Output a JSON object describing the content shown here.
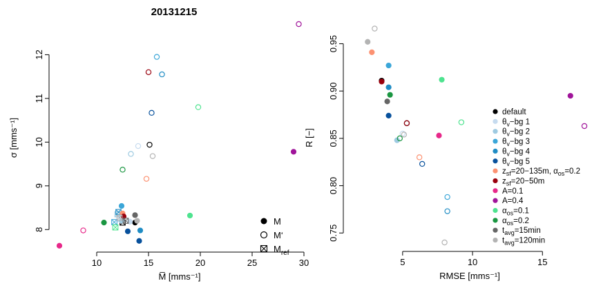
{
  "figure_title": "20131215",
  "chart_data": [
    {
      "type": "scatter",
      "title": "20131215",
      "xlabel": "M̅ [mms⁻¹]",
      "ylabel": "σ [mms⁻¹]",
      "xlim": [
        6,
        30
      ],
      "ylim": [
        7.5,
        12.7
      ],
      "x_ticks": [
        10,
        15,
        20,
        25,
        30
      ],
      "y_ticks": [
        8,
        9,
        10,
        11,
        12
      ],
      "grid": false,
      "legend_position": "bottom-right",
      "legend": [
        {
          "label": "M",
          "marker": "filled"
        },
        {
          "label": "M‘",
          "marker": "open"
        },
        {
          "label": "M",
          "sub": "ref",
          "marker": "crossed-square"
        }
      ],
      "points": [
        {
          "series": "default",
          "x": 13.7,
          "y": 8.16,
          "marker": "filled",
          "color": "#000000"
        },
        {
          "series": "default",
          "x": 15.1,
          "y": 9.94,
          "marker": "open",
          "color": "#000000"
        },
        {
          "series": "default",
          "x": 12.5,
          "y": 8.16,
          "marker": "ref",
          "color": "#000000"
        },
        {
          "series": "θv-bg 1",
          "x": 13.2,
          "y": 8.18,
          "marker": "filled",
          "color": "#c6dbef"
        },
        {
          "series": "θv-bg 1",
          "x": 14.0,
          "y": 9.91,
          "marker": "open",
          "color": "#c6dbef"
        },
        {
          "series": "θv-bg 1",
          "x": 12.3,
          "y": 8.24,
          "marker": "ref",
          "color": "#c6dbef"
        },
        {
          "series": "θv-bg 2",
          "x": 12.4,
          "y": 8.2,
          "marker": "filled",
          "color": "#9ecae1"
        },
        {
          "series": "θv-bg 2",
          "x": 13.3,
          "y": 9.73,
          "marker": "open",
          "color": "#9ecae1"
        },
        {
          "series": "θv-bg 2",
          "x": 12.0,
          "y": 8.35,
          "marker": "ref",
          "color": "#9ecae1"
        },
        {
          "series": "θv-bg 3",
          "x": 12.4,
          "y": 8.54,
          "marker": "filled",
          "color": "#3ba6d8"
        },
        {
          "series": "θv-bg 3",
          "x": 15.8,
          "y": 11.95,
          "marker": "open",
          "color": "#3ba6d8"
        },
        {
          "series": "θv-bg 3",
          "x": 11.7,
          "y": 8.17,
          "marker": "ref",
          "color": "#3ba6d8"
        },
        {
          "series": "θv-bg 4",
          "x": 14.2,
          "y": 7.98,
          "marker": "filled",
          "color": "#1f8cc4"
        },
        {
          "series": "θv-bg 4",
          "x": 16.3,
          "y": 11.55,
          "marker": "open",
          "color": "#1f8cc4"
        },
        {
          "series": "θv-bg 4",
          "x": 12.1,
          "y": 8.4,
          "marker": "ref",
          "color": "#1f8cc4"
        },
        {
          "series": "θv-bg 5",
          "x": 14.1,
          "y": 7.74,
          "marker": "filled",
          "color": "#08519c"
        },
        {
          "series": "θv-bg 5",
          "x": 15.3,
          "y": 10.67,
          "marker": "open",
          "color": "#08519c"
        },
        {
          "series": "θv-bg 5",
          "x": 13.0,
          "y": 7.96,
          "marker": "filled",
          "color": "#08519c"
        },
        {
          "series": "zsf=20–135m, αos=0.2",
          "x": 12.5,
          "y": 8.37,
          "marker": "filled",
          "color": "#fc9272"
        },
        {
          "series": "zsf=20–135m, αos=0.2",
          "x": 14.8,
          "y": 9.16,
          "marker": "open",
          "color": "#fc9272"
        },
        {
          "series": "zsf=20–50m",
          "x": 12.6,
          "y": 8.3,
          "marker": "filled",
          "color": "#99000d"
        },
        {
          "series": "zsf=20–50m",
          "x": 15.0,
          "y": 11.6,
          "marker": "open",
          "color": "#99000d"
        },
        {
          "series": "A=0.1",
          "x": 6.4,
          "y": 7.63,
          "marker": "filled",
          "color": "#e7298a"
        },
        {
          "series": "A=0.1",
          "x": 8.7,
          "y": 7.98,
          "marker": "open",
          "color": "#e7298a"
        },
        {
          "series": "A=0.4",
          "x": 29.0,
          "y": 9.78,
          "marker": "filled",
          "color": "#a0149a"
        },
        {
          "series": "A=0.4",
          "x": 29.5,
          "y": 12.7,
          "marker": "open",
          "color": "#a0149a"
        },
        {
          "series": "αos=0.1",
          "x": 19.0,
          "y": 8.32,
          "marker": "filled",
          "color": "#4ee38f"
        },
        {
          "series": "αos=0.1",
          "x": 19.8,
          "y": 10.8,
          "marker": "open",
          "color": "#4ee38f"
        },
        {
          "series": "αos=0.1",
          "x": 11.8,
          "y": 8.05,
          "marker": "ref",
          "color": "#4ee38f"
        },
        {
          "series": "αos=0.2",
          "x": 10.7,
          "y": 8.16,
          "marker": "filled",
          "color": "#1a9641"
        },
        {
          "series": "αos=0.2",
          "x": 12.5,
          "y": 9.37,
          "marker": "open",
          "color": "#1a9641"
        },
        {
          "series": "tavg=15min",
          "x": 13.7,
          "y": 8.33,
          "marker": "filled",
          "color": "#666666"
        },
        {
          "series": "tavg=15min",
          "x": 12.8,
          "y": 8.2,
          "marker": "ref",
          "color": "#666666"
        },
        {
          "series": "tavg=120min",
          "x": 13.9,
          "y": 8.2,
          "marker": "filled",
          "color": "#b3b3b3"
        },
        {
          "series": "tavg=120min",
          "x": 15.4,
          "y": 9.68,
          "marker": "open",
          "color": "#b3b3b3"
        },
        {
          "series": "tavg=120min",
          "x": 12.2,
          "y": 8.27,
          "marker": "ref",
          "color": "#b3b3b3"
        }
      ]
    },
    {
      "type": "scatter",
      "title": "",
      "xlabel": "RMSE [mms⁻¹]",
      "ylabel": "R [−]",
      "xlim": [
        1.5,
        18
      ],
      "ylim": [
        0.74,
        0.97
      ],
      "x_ticks": [
        5,
        10,
        15
      ],
      "y_ticks": [
        0.75,
        0.8,
        0.85,
        0.9,
        0.95
      ],
      "grid": false,
      "legend_position": "right",
      "legend": [
        {
          "label": "default",
          "color": "#000000"
        },
        {
          "label": "θ",
          "sub": "v",
          "rest": "−bg 1",
          "color": "#c6dbef"
        },
        {
          "label": "θ",
          "sub": "v",
          "rest": "−bg 2",
          "color": "#9ecae1"
        },
        {
          "label": "θ",
          "sub": "v",
          "rest": "−bg 3",
          "color": "#3ba6d8"
        },
        {
          "label": "θ",
          "sub": "v",
          "rest": "−bg 4",
          "color": "#1f8cc4"
        },
        {
          "label": "θ",
          "sub": "v",
          "rest": "−bg 5",
          "color": "#08519c"
        },
        {
          "label": "z",
          "sub": "sf",
          "rest": "=20−135m, α",
          "sub2": "os",
          "rest2": "=0.2",
          "color": "#fc9272"
        },
        {
          "label": "z",
          "sub": "sf",
          "rest": "=20−50m",
          "color": "#99000d"
        },
        {
          "label": "A=0.1",
          "color": "#e7298a"
        },
        {
          "label": "A=0.4",
          "color": "#a0149a"
        },
        {
          "label": "α",
          "sub": "os",
          "rest": "=0.1",
          "color": "#4ee38f"
        },
        {
          "label": "α",
          "sub": "os",
          "rest": "=0.2",
          "color": "#1a9641"
        },
        {
          "label": "t",
          "sub": "avg",
          "rest": "=15min",
          "color": "#666666"
        },
        {
          "label": "t",
          "sub": "avg",
          "rest": "=120min",
          "color": "#b3b3b3"
        }
      ],
      "points": [
        {
          "series": "default",
          "x": 3.5,
          "y": 0.911,
          "marker": "filled",
          "color": "#000000"
        },
        {
          "series": "default",
          "x": 5.3,
          "y": 0.866,
          "marker": "open",
          "color": "#000000"
        },
        {
          "series": "θv-bg 1",
          "x": 5.0,
          "y": 0.855,
          "marker": "open",
          "color": "#c6dbef"
        },
        {
          "series": "θv-bg 2",
          "x": 4.6,
          "y": 0.848,
          "marker": "filled",
          "color": "#9ecae1"
        },
        {
          "series": "θv-bg 3",
          "x": 4.0,
          "y": 0.927,
          "marker": "filled",
          "color": "#3ba6d8"
        },
        {
          "series": "θv-bg 3",
          "x": 8.2,
          "y": 0.788,
          "marker": "open",
          "color": "#3ba6d8"
        },
        {
          "series": "θv-bg 4",
          "x": 4.0,
          "y": 0.904,
          "marker": "filled",
          "color": "#1f8cc4"
        },
        {
          "series": "θv-bg 4",
          "x": 8.2,
          "y": 0.773,
          "marker": "open",
          "color": "#1f8cc4"
        },
        {
          "series": "θv-bg 5",
          "x": 4.0,
          "y": 0.874,
          "marker": "filled",
          "color": "#08519c"
        },
        {
          "series": "θv-bg 5",
          "x": 6.4,
          "y": 0.823,
          "marker": "open",
          "color": "#08519c"
        },
        {
          "series": "zsf=20–135m, αos=0.2",
          "x": 2.8,
          "y": 0.941,
          "marker": "filled",
          "color": "#fc9272"
        },
        {
          "series": "zsf=20–135m, αos=0.2",
          "x": 6.2,
          "y": 0.83,
          "marker": "open",
          "color": "#fc9272"
        },
        {
          "series": "zsf=20–50m",
          "x": 3.5,
          "y": 0.91,
          "marker": "filled",
          "color": "#99000d"
        },
        {
          "series": "zsf=20–50m",
          "x": 5.3,
          "y": 0.866,
          "marker": "open",
          "color": "#99000d"
        },
        {
          "series": "A=0.1",
          "x": 7.6,
          "y": 0.853,
          "marker": "filled",
          "color": "#e7298a"
        },
        {
          "series": "A=0.4",
          "x": 17.0,
          "y": 0.895,
          "marker": "filled",
          "color": "#a0149a"
        },
        {
          "series": "A=0.4",
          "x": 18.0,
          "y": 0.863,
          "marker": "open",
          "color": "#a0149a"
        },
        {
          "series": "αos=0.1",
          "x": 7.8,
          "y": 0.912,
          "marker": "filled",
          "color": "#4ee38f"
        },
        {
          "series": "αos=0.1",
          "x": 9.2,
          "y": 0.867,
          "marker": "open",
          "color": "#4ee38f"
        },
        {
          "series": "αos=0.2",
          "x": 4.1,
          "y": 0.896,
          "marker": "filled",
          "color": "#1a9641"
        },
        {
          "series": "αos=0.2",
          "x": 4.8,
          "y": 0.85,
          "marker": "open",
          "color": "#1a9641"
        },
        {
          "series": "tavg=15min",
          "x": 3.9,
          "y": 0.889,
          "marker": "filled",
          "color": "#666666"
        },
        {
          "series": "tavg=120min",
          "x": 2.5,
          "y": 0.952,
          "marker": "filled",
          "color": "#b3b3b3"
        },
        {
          "series": "tavg=120min",
          "x": 3.0,
          "y": 0.966,
          "marker": "open",
          "color": "#b3b3b3"
        },
        {
          "series": "tavg=120min",
          "x": 5.1,
          "y": 0.854,
          "marker": "open",
          "color": "#b3b3b3"
        },
        {
          "series": "tavg=120min",
          "x": 8.0,
          "y": 0.74,
          "marker": "open",
          "color": "#b3b3b3"
        }
      ]
    }
  ]
}
